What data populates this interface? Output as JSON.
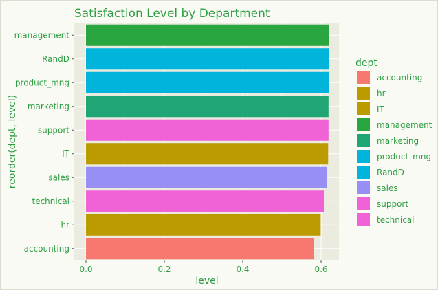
{
  "chart_data": {
    "type": "bar",
    "orientation": "horizontal",
    "title": "Satisfaction Level by Department",
    "xlabel": "level",
    "ylabel": "reorder(dept, level)",
    "xlim": [
      0,
      0.62
    ],
    "x_ticks": [
      "0.0",
      "0.2",
      "0.4",
      "0.6"
    ],
    "x_tick_values": [
      0.0,
      0.2,
      0.4,
      0.6
    ],
    "grid": true,
    "categories": [
      "management",
      "RandD",
      "product_mng",
      "marketing",
      "support",
      "IT",
      "sales",
      "technical",
      "hr",
      "accounting"
    ],
    "values": [
      0.621,
      0.62,
      0.62,
      0.619,
      0.619,
      0.618,
      0.614,
      0.607,
      0.599,
      0.582
    ],
    "bar_colors": [
      "#2aa640",
      "#00b4dc",
      "#00b4dc",
      "#1fa674",
      "#ef63d6",
      "#bc9b00",
      "#988ff5",
      "#ef63d6",
      "#bc9b00",
      "#f7786e"
    ],
    "legend": {
      "title": "dept",
      "placement": "right",
      "entries": [
        {
          "label": "accounting",
          "color": "#f7786e"
        },
        {
          "label": "hr",
          "color": "#bc9b00"
        },
        {
          "label": "IT",
          "color": "#bc9b00"
        },
        {
          "label": "management",
          "color": "#2aa640"
        },
        {
          "label": "marketing",
          "color": "#1fa674"
        },
        {
          "label": "product_mng",
          "color": "#00b4dc"
        },
        {
          "label": "RandD",
          "color": "#00b4dc"
        },
        {
          "label": "sales",
          "color": "#988ff5"
        },
        {
          "label": "support",
          "color": "#ef63d6"
        },
        {
          "label": "technical",
          "color": "#ef63d6"
        }
      ]
    },
    "colors": {
      "text": "#2e9e44",
      "panel_background": "#ebebe0",
      "grid_line": "#ffffff",
      "page_background": "#fafaf5"
    }
  }
}
